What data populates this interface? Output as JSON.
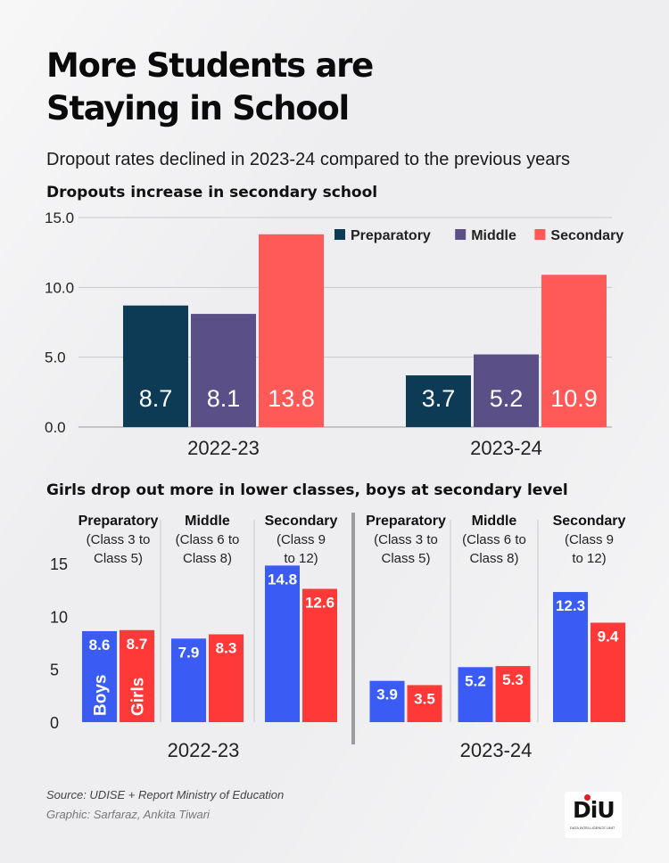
{
  "header": {
    "title": "More Students are Staying in School",
    "subtitle": "Dropout rates declined in 2023-24 compared to the previous years"
  },
  "chart_data": [
    {
      "type": "bar",
      "title": "Dropouts increase in secondary school",
      "categories": [
        "2022-23",
        "2023-24"
      ],
      "series": [
        {
          "name": "Preparatory",
          "values": [
            8.7,
            3.7
          ],
          "labels": [
            "8.7",
            "3.7"
          ]
        },
        {
          "name": "Middle",
          "values": [
            8.1,
            5.2
          ],
          "labels": [
            "8.1",
            "5.2"
          ]
        },
        {
          "name": "Secondary",
          "values": [
            13.8,
            10.9
          ],
          "labels": [
            "13.8",
            "10.9"
          ]
        }
      ],
      "yticks": [
        "0.0",
        "5.0",
        "10.0",
        "15.0"
      ],
      "ylim": [
        0,
        15
      ],
      "grid": true,
      "legend": "top-right",
      "colors": {
        "Preparatory": "#0d3b55",
        "Middle": "#5a4f87",
        "Secondary": "#ff5a57"
      }
    },
    {
      "type": "bar",
      "title": "Girls drop out more in lower classes, boys at secondary level",
      "years": [
        "2022-23",
        "2023-24"
      ],
      "groups": [
        {
          "name_lines": [
            "Preparatory"
          ],
          "desc_lines": [
            "(Class 3 to",
            "Class 5)"
          ]
        },
        {
          "name_lines": [
            "Middle"
          ],
          "desc_lines": [
            "(Class 6 to",
            "Class 8)"
          ]
        },
        {
          "name_lines": [
            "Secondary"
          ],
          "desc_lines": [
            "(Class 9",
            "to 12)"
          ]
        }
      ],
      "series": [
        {
          "name": "Boys",
          "values": [
            8.6,
            7.9,
            14.8,
            3.9,
            5.2,
            12.3
          ],
          "labels": [
            "8.6",
            "7.9",
            "14.8",
            "3.9",
            "5.2",
            "12.3"
          ]
        },
        {
          "name": "Girls",
          "values": [
            8.7,
            8.3,
            12.6,
            3.5,
            5.3,
            9.4
          ],
          "labels": [
            "8.7",
            "8.3",
            "12.6",
            "3.5",
            "5.3",
            "9.4"
          ]
        }
      ],
      "yticks": [
        "0",
        "5",
        "10",
        "15"
      ],
      "ylim": [
        0,
        15
      ],
      "colors": {
        "Boys": "#3a5cf5",
        "Girls": "#ff3838"
      }
    }
  ],
  "footer": {
    "source": "Source: UDISE + Report  Ministry of Education",
    "credit": "Graphic: Sarfaraz, Ankita Tiwari",
    "logo_text": "DiU",
    "logo_tag": "DATA INTELLIGENCE UNIT"
  }
}
